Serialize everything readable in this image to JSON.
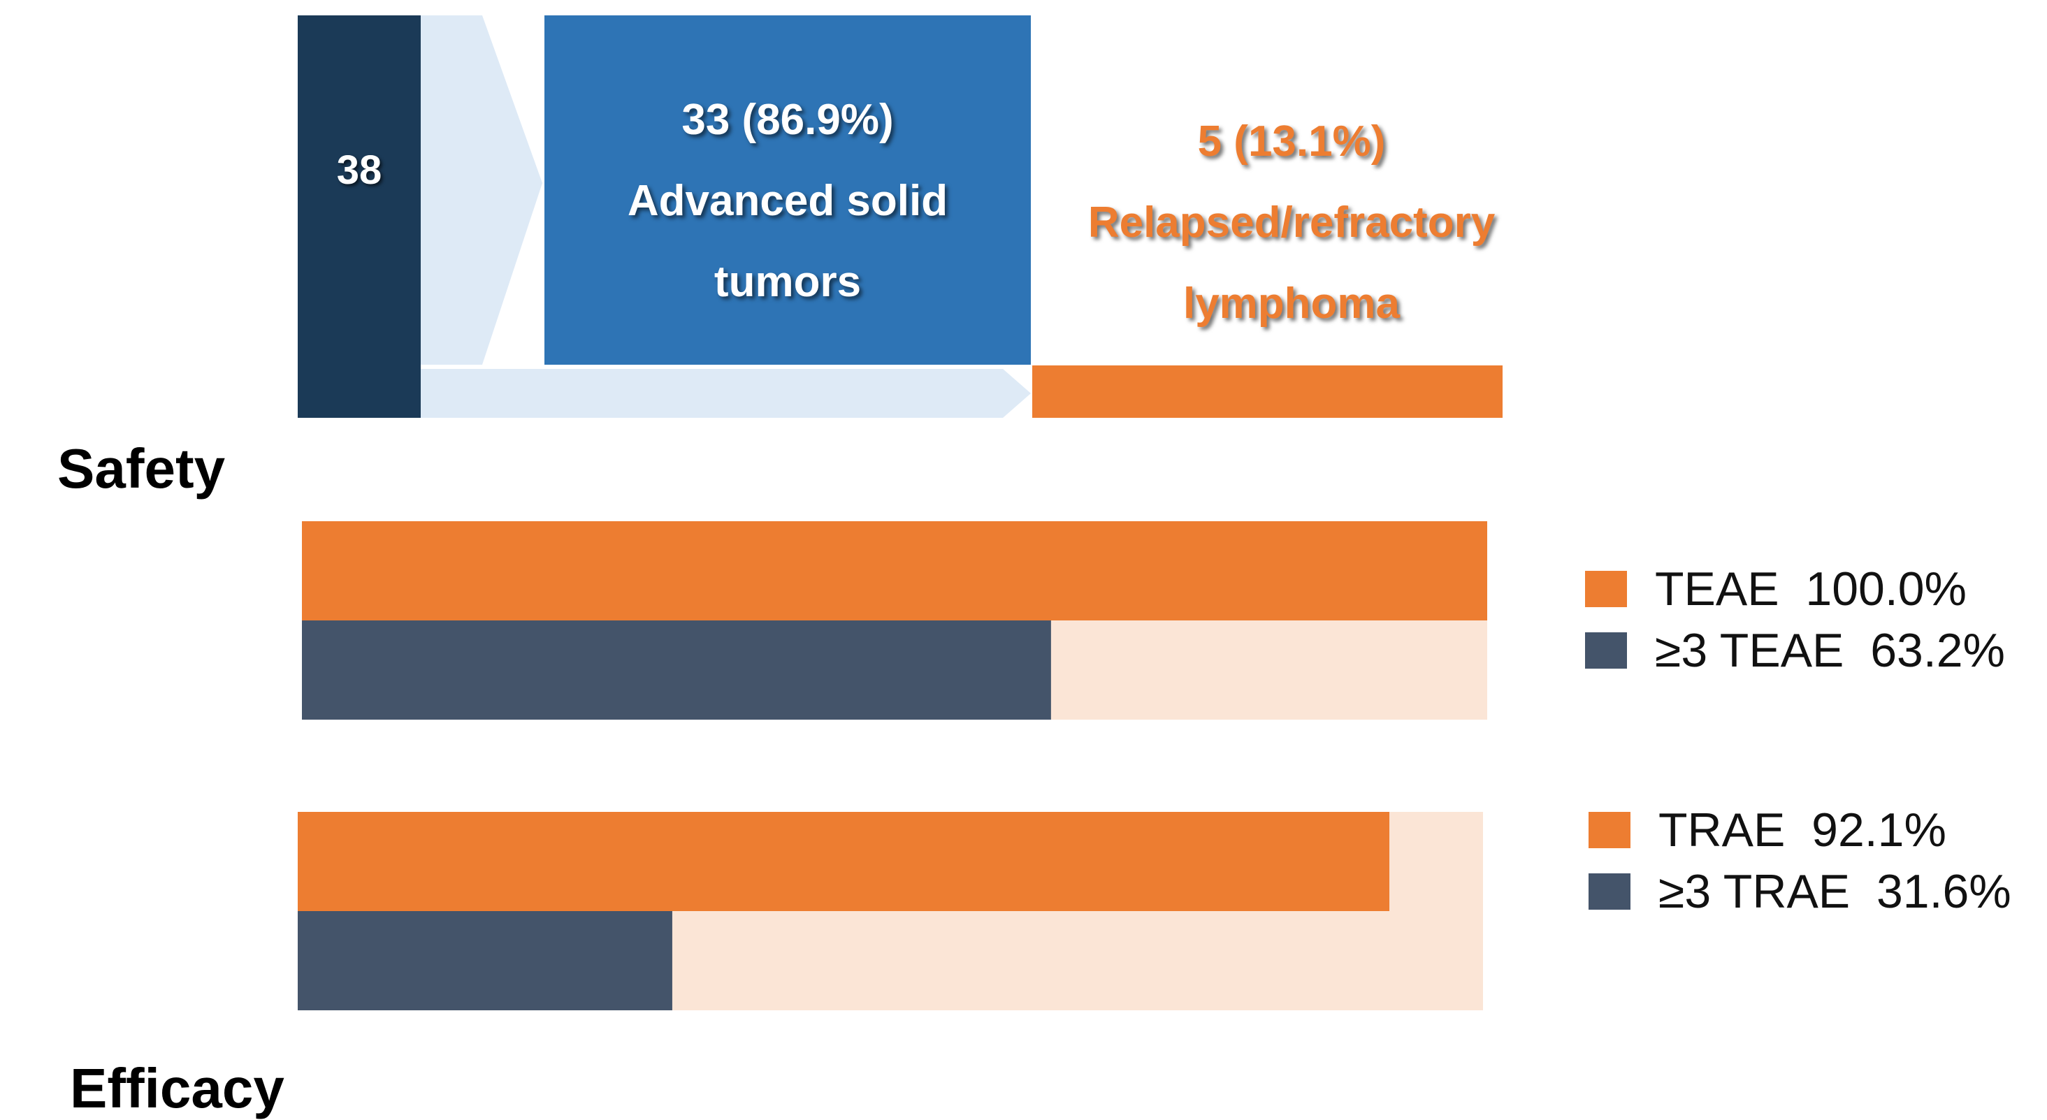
{
  "flow": {
    "total": "38",
    "solid": {
      "line1": "33 (86.9%)",
      "line2": "Advanced solid",
      "line3": "tumors"
    },
    "lymphoma": {
      "line1": "5 (13.1%)",
      "line2": "Relapsed/refractory",
      "line3": "lymphoma"
    }
  },
  "sections": {
    "safety": "Safety",
    "efficacy": "Efficacy"
  },
  "colors": {
    "orange": "#ed7d31",
    "slate": "#44546a",
    "track": "#fbe5d6",
    "navy": "#1b3a57",
    "blue": "#2e74b5",
    "arrow": "#deeaf6"
  },
  "chart_data": [
    {
      "type": "bar",
      "orientation": "horizontal",
      "series": [
        {
          "name": "TEAE",
          "value": 100.0,
          "color": "#ed7d31",
          "legend": "TEAE  100.0%"
        },
        {
          "name": "≥3 TEAE",
          "value": 63.2,
          "color": "#44546a",
          "legend": "≥3 TEAE  63.2%"
        }
      ],
      "xlim": [
        0,
        100
      ]
    },
    {
      "type": "bar",
      "orientation": "horizontal",
      "series": [
        {
          "name": "TRAE",
          "value": 92.1,
          "color": "#ed7d31",
          "legend": "TRAE  92.1%"
        },
        {
          "name": "≥3 TRAE",
          "value": 31.6,
          "color": "#44546a",
          "legend": "≥3 TRAE  31.6%"
        }
      ],
      "xlim": [
        0,
        100
      ]
    }
  ]
}
